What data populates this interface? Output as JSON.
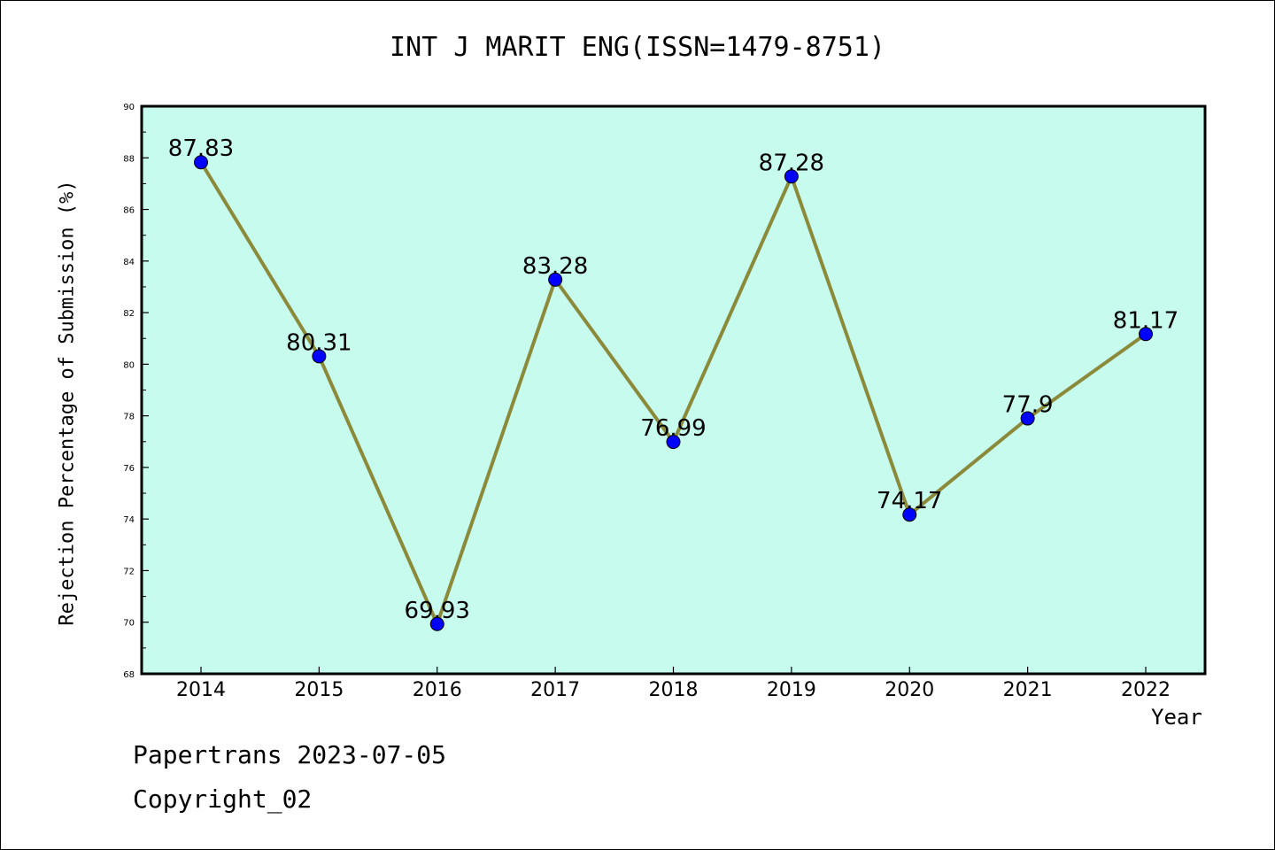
{
  "chart_data": {
    "type": "line",
    "title": "INT J MARIT ENG(ISSN=1479-8751)",
    "xlabel": "Year",
    "ylabel": "Rejection Percentage of Submission (%)",
    "categories": [
      "2014",
      "2015",
      "2016",
      "2017",
      "2018",
      "2019",
      "2020",
      "2021",
      "2022"
    ],
    "series": [
      {
        "values": [
          87.83,
          80.31,
          69.93,
          83.28,
          76.99,
          87.28,
          74.17,
          77.9,
          81.17
        ],
        "labels": [
          "87.83",
          "80.31",
          "69.93",
          "83.28",
          "76.99",
          "87.28",
          "74.17",
          "77.9",
          "81.17"
        ]
      }
    ],
    "ylim": [
      68,
      90
    ],
    "yticks": [
      "68",
      "70",
      "72",
      "74",
      "76",
      "78",
      "80",
      "82",
      "84",
      "86",
      "88",
      "90"
    ],
    "grid": false,
    "colors": {
      "plot_background": "#c6fbee",
      "line": "#8b8a3a",
      "marker": "#0000ff",
      "axis": "#000000"
    }
  },
  "footer": {
    "line1": "Papertrans 2023-07-05",
    "line2": "Copyright_02"
  }
}
